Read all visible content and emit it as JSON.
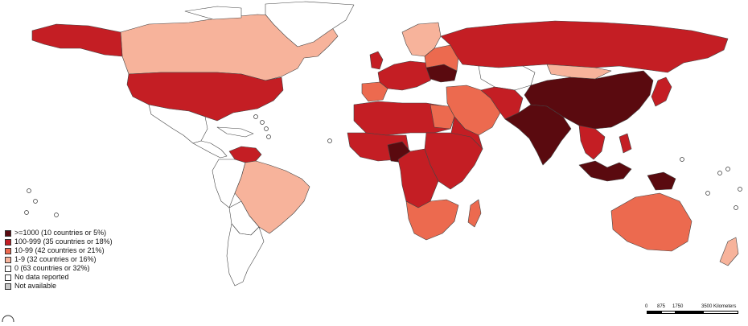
{
  "colors": {
    "c1000": "#5a0a0f",
    "c100": "#c41e24",
    "c10": "#ec6a4f",
    "c1": "#f7b39b",
    "c0": "#ffffff",
    "na": "#c8c8c8",
    "border": "#444444"
  },
  "legend": {
    "items": [
      {
        "label": ">=1000 (10 countries or 5%)",
        "color": "#5a0a0f"
      },
      {
        "label": "100-999 (35 countries or 18%)",
        "color": "#c41e24"
      },
      {
        "label": "10-99 (42 countries or 21%)",
        "color": "#ec6a4f"
      },
      {
        "label": "1-9 (32 countries or 16%)",
        "color": "#f7b39b"
      },
      {
        "label": "0 (63 countries or 32%)",
        "color": "#ffffff"
      },
      {
        "label": "No data reported",
        "color": "#ffffff"
      },
      {
        "label": "Not available",
        "color": "#c8c8c8"
      }
    ]
  },
  "scale_bar": {
    "labels": [
      "0",
      "875",
      "1750",
      "3500 Kilometers"
    ]
  },
  "icons": {
    "logo": "who-emblem-icon"
  }
}
